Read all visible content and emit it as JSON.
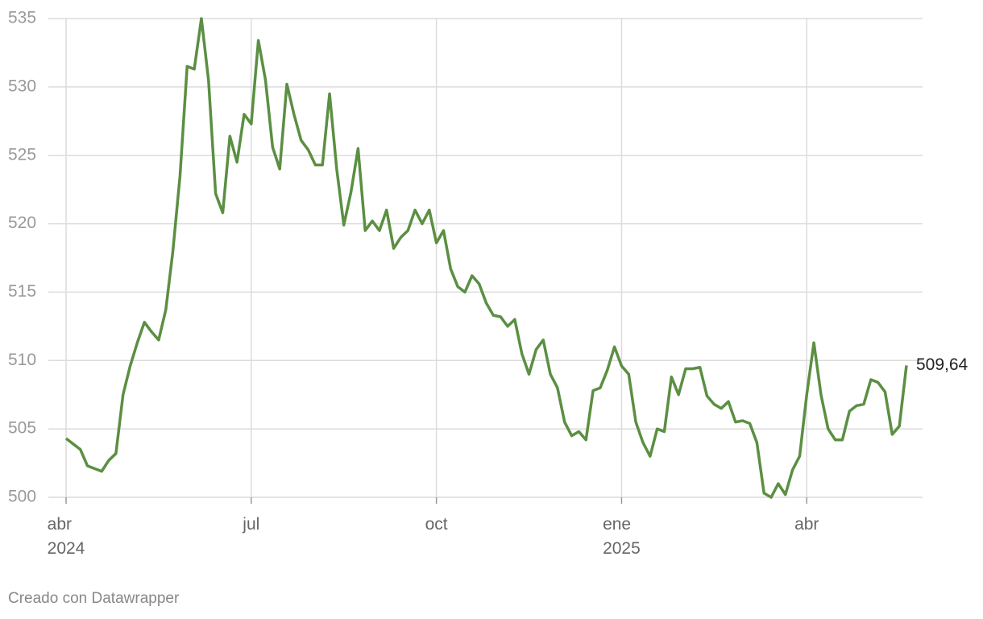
{
  "chart_data": {
    "type": "line",
    "categories": [
      "abr\n2024",
      null,
      null,
      null,
      null,
      null,
      null,
      null,
      null,
      null,
      null,
      null,
      null,
      null,
      null,
      null,
      null,
      null,
      null,
      null,
      null,
      null,
      null,
      null,
      null,
      null,
      "jul",
      null,
      null,
      null,
      null,
      null,
      null,
      null,
      null,
      null,
      null,
      null,
      null,
      null,
      null,
      null,
      null,
      null,
      null,
      null,
      null,
      null,
      null,
      null,
      null,
      null,
      "oct",
      null,
      null,
      null,
      null,
      null,
      null,
      null,
      null,
      null,
      null,
      null,
      null,
      null,
      null,
      null,
      null,
      null,
      null,
      null,
      null,
      null,
      null,
      null,
      null,
      null,
      "ene\n2025",
      null,
      null,
      null,
      null,
      null,
      null,
      null,
      null,
      null,
      null,
      null,
      null,
      null,
      null,
      null,
      null,
      null,
      null,
      null,
      null,
      null,
      null,
      null,
      null,
      null,
      "abr",
      null,
      null,
      null,
      null,
      null,
      null,
      null,
      null,
      null,
      null,
      null,
      null,
      null,
      null
    ],
    "values": [
      504.3,
      503.9,
      503.5,
      502.3,
      502.1,
      501.9,
      502.7,
      503.2,
      507.5,
      509.6,
      511.3,
      512.8,
      512.1,
      511.5,
      513.7,
      518,
      523.5,
      531.5,
      531.3,
      535,
      530.5,
      522.2,
      520.8,
      526.4,
      524.5,
      528,
      527.3,
      533.4,
      530.5,
      525.6,
      524,
      530.2,
      528,
      526.1,
      525.4,
      524.3,
      524.3,
      529.5,
      524,
      519.9,
      522.3,
      525.5,
      519.5,
      520.2,
      519.5,
      521,
      518.2,
      519,
      519.5,
      521,
      520,
      521,
      518.6,
      519.5,
      516.7,
      515.4,
      515,
      516.2,
      515.6,
      514.2,
      513.3,
      513.2,
      512.5,
      513,
      510.5,
      509,
      510.8,
      511.5,
      509,
      508,
      505.5,
      504.5,
      504.8,
      504.2,
      507.8,
      508,
      509.3,
      511,
      509.6,
      509,
      505.5,
      504,
      503,
      505,
      504.8,
      508.8,
      507.5,
      509.4,
      509.4,
      509.5,
      507.4,
      506.8,
      506.5,
      507,
      505.5,
      505.6,
      505.4,
      504,
      500.3,
      500,
      501,
      500.2,
      502,
      503,
      507.5,
      511.3,
      507.5,
      505,
      504.2,
      504.2,
      506.3,
      506.7,
      506.8,
      508.6,
      508.4,
      507.7,
      504.6,
      505.2,
      509.64
    ],
    "value_labels": {
      "118": "509,64"
    },
    "color": "#5b8f42",
    "ylim": [
      500,
      535
    ],
    "yticks": [
      500,
      505,
      510,
      515,
      520,
      525,
      530,
      535
    ],
    "grid": true,
    "source": "Creado con Datawrapper"
  }
}
